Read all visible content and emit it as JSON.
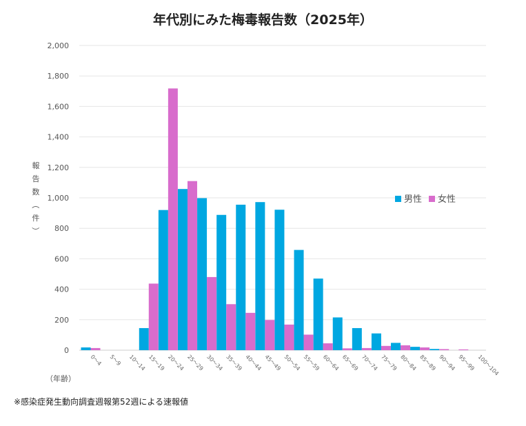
{
  "chart_data": {
    "type": "bar",
    "title": "年代別にみた梅毒報告数（2025年）",
    "ylabel": "報告数（件）",
    "xlabel": "（年齢）",
    "ylim": [
      0,
      2000
    ],
    "yticks": [
      0,
      200,
      400,
      600,
      800,
      1000,
      1200,
      1400,
      1600,
      1800,
      2000
    ],
    "ytick_labels": [
      "0",
      "200",
      "400",
      "600",
      "800",
      "1,000",
      "1,200",
      "1,400",
      "1,600",
      "1,800",
      "2,000"
    ],
    "grid": true,
    "legend_position": "right",
    "categories": [
      "0〜4",
      "5〜9",
      "10〜14",
      "15〜19",
      "20〜24",
      "25〜29",
      "30〜34",
      "35〜39",
      "40〜44",
      "45〜49",
      "50〜54",
      "55〜59",
      "60〜64",
      "65〜69",
      "70〜74",
      "75〜79",
      "80〜84",
      "85〜89",
      "90〜94",
      "95〜99",
      "100〜104"
    ],
    "series": [
      {
        "name": "男性",
        "color": "#00a7e1",
        "values": [
          18,
          0,
          0,
          145,
          920,
          1058,
          998,
          888,
          955,
          972,
          922,
          658,
          470,
          215,
          145,
          110,
          48,
          22,
          8,
          0,
          0
        ]
      },
      {
        "name": "女性",
        "color": "#d86ccc",
        "values": [
          14,
          0,
          0,
          437,
          1718,
          1110,
          480,
          302,
          245,
          198,
          168,
          102,
          45,
          12,
          14,
          28,
          32,
          18,
          7,
          5,
          0
        ]
      }
    ]
  },
  "footnote": "※感染症発生動向調査週報第52週による速報値"
}
